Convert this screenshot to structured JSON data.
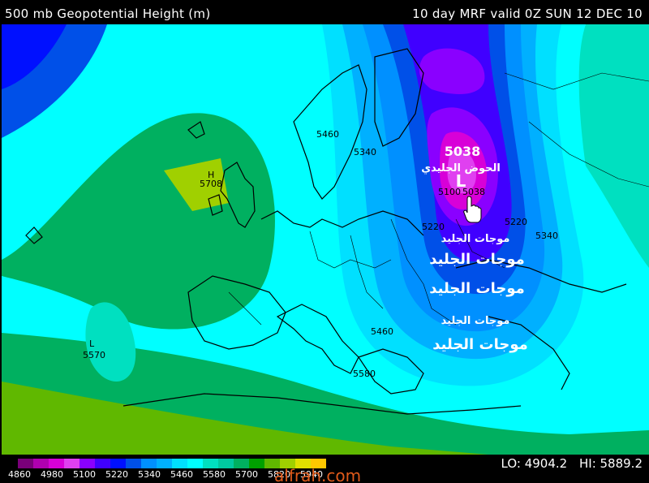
{
  "header": {
    "title": "500 mb Geopotential Height (m)",
    "valid": "10 day MRF valid 0Z SUN 12 DEC 10"
  },
  "labels": {
    "trough_value": "5038",
    "trough_name": "الحوض الجليدي",
    "trough_letter": "L",
    "high_letter": "H",
    "high_value": "5708",
    "low_sw_letter": "L",
    "low_sw_value": "5570",
    "waves": [
      "موجات الجليد",
      "موجات الجليد",
      "موجات الجليد",
      "موجات الجليد",
      "موجات الجليد"
    ]
  },
  "contour_labels": {
    "c5460a": "5460",
    "c5340a": "5340",
    "c5100": "5100",
    "c5038": "5038",
    "c5220a": "5220",
    "c5220b": "5220",
    "c5340b": "5340",
    "c5460b": "5460",
    "c5580": "5580"
  },
  "legend": {
    "values": [
      "4860",
      "4980",
      "5100",
      "5220",
      "5340",
      "5460",
      "5580",
      "5700",
      "5820",
      "5940"
    ],
    "colors": [
      "#7a007a",
      "#b000b0",
      "#d800d8",
      "#e040f0",
      "#8a00ff",
      "#4000ff",
      "#0010ff",
      "#0050e8",
      "#0090ff",
      "#00b0ff",
      "#00e0ff",
      "#00ffff",
      "#00e0c0",
      "#00c8a0",
      "#00b060",
      "#00a000",
      "#60b800",
      "#a0d000",
      "#e0e000",
      "#ffc800"
    ]
  },
  "stats": {
    "lo": "LO: 4904.2",
    "hi": "HI: 5889.2"
  },
  "watermark": "alfrah.com"
}
